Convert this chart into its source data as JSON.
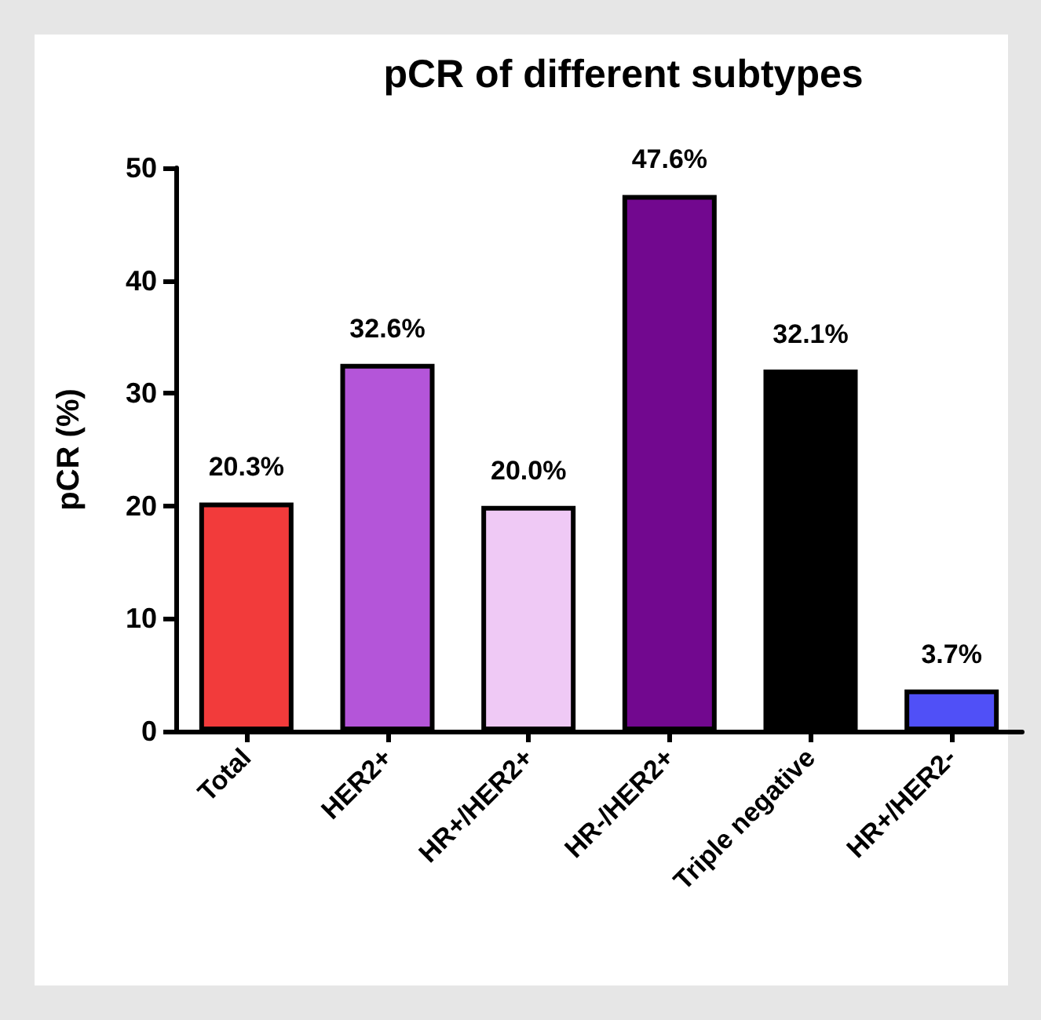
{
  "chart_data": {
    "type": "bar",
    "title": "pCR of different subtypes",
    "ylabel": "pCR (%)",
    "categories": [
      "Total",
      "HER2+",
      "HR+/HER2+",
      "HR-/HER2+",
      "Triple negative",
      "HR+/HER2-"
    ],
    "values": [
      20.3,
      32.6,
      20.0,
      47.6,
      32.1,
      3.7
    ],
    "colors": [
      "#f23b3b",
      "#b455d9",
      "#efc9f5",
      "#72088f",
      "#000000",
      "#5050f7"
    ],
    "value_labels": [
      "20.3%",
      "32.6%",
      "20.0%",
      "47.6%",
      "32.1%",
      "3.7%"
    ],
    "ylim": [
      0,
      50
    ],
    "yticks": [
      0,
      10,
      20,
      30,
      40,
      50
    ],
    "grid": false
  }
}
